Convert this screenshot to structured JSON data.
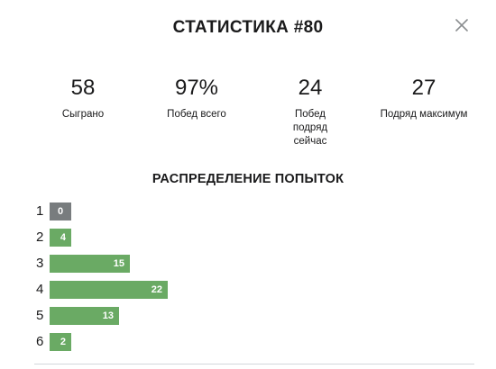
{
  "modal": {
    "title": "СТАТИСТИКА #80",
    "close_icon": "close-icon"
  },
  "stats": [
    {
      "value": "58",
      "label": "Сыграно"
    },
    {
      "value": "97%",
      "label": "Побед всего"
    },
    {
      "value": "24",
      "label": "Побед подряд сейчас"
    },
    {
      "value": "27",
      "label": "Подряд максимум"
    }
  ],
  "distribution": {
    "title": "РАСПРЕДЕЛЕНИЕ ПОПЫТОК",
    "rows": [
      {
        "guess": "1",
        "count": 0
      },
      {
        "guess": "2",
        "count": 4
      },
      {
        "guess": "3",
        "count": 15
      },
      {
        "guess": "4",
        "count": 22
      },
      {
        "guess": "5",
        "count": 13
      },
      {
        "guess": "6",
        "count": 2
      }
    ]
  },
  "colors": {
    "bar": "#6aaa64",
    "bar_zero": "#787c7e",
    "text": "#1a1a1b"
  }
}
